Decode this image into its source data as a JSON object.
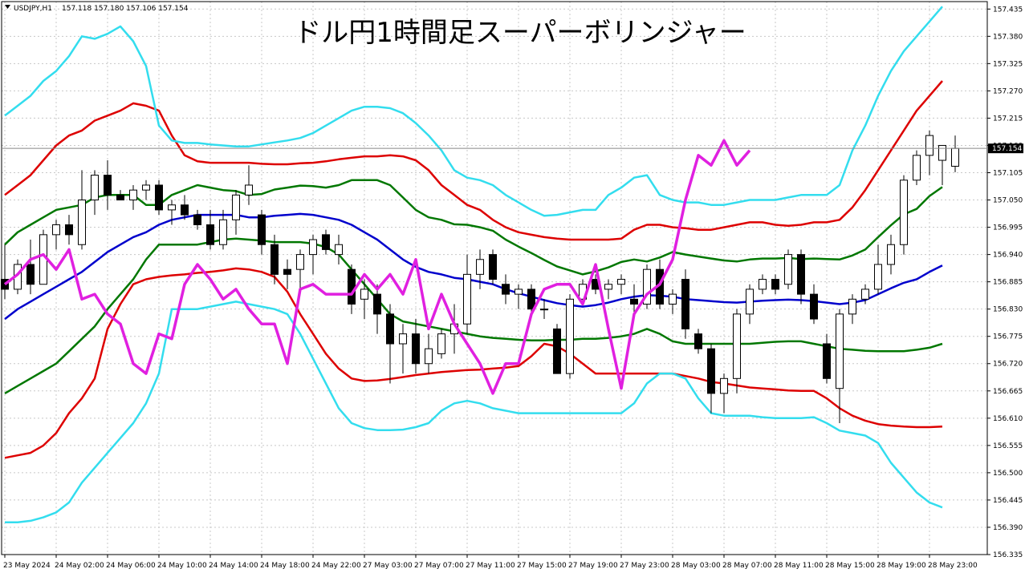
{
  "window": {
    "symbol": "USDJPY,H1",
    "ohlc": "157.118 157.180 157.106 157.154",
    "title": "ドル円1時間足スーパーボリンジャー",
    "current_price": "157.154"
  },
  "colors": {
    "background": "#ffffff",
    "grid": "#c8c8c8",
    "candle_bull": "#ffffff",
    "candle_bear": "#000000",
    "sma": "#0000cc",
    "band1": "#007700",
    "band2": "#dd0000",
    "band3": "#33ddee",
    "chikou": "#e020e0"
  },
  "chart_data": {
    "type": "line",
    "title": "ドル円1時間足スーパーボリンジャー",
    "xlabel": "",
    "ylabel": "",
    "ylim": [
      156.335,
      157.45
    ],
    "grid": true,
    "y_ticks": [
      "157.435",
      "157.380",
      "157.325",
      "157.270",
      "157.215",
      "157.160",
      "157.105",
      "157.050",
      "156.995",
      "156.940",
      "156.885",
      "156.830",
      "156.775",
      "156.720",
      "156.665",
      "156.610",
      "156.555",
      "156.500",
      "156.445",
      "156.390",
      "156.335"
    ],
    "x_ticks": [
      "23 May 2024",
      "24 May 02:00",
      "24 May 06:00",
      "24 May 10:00",
      "24 May 14:00",
      "24 May 18:00",
      "24 May 22:00",
      "27 May 03:00",
      "27 May 07:00",
      "27 May 11:00",
      "27 May 15:00",
      "27 May 19:00",
      "27 May 23:00",
      "28 May 03:00",
      "28 May 07:00",
      "28 May 11:00",
      "28 May 15:00",
      "28 May 19:00",
      "28 May 23:00"
    ],
    "candles": [
      {
        "o": 156.89,
        "h": 156.96,
        "l": 156.85,
        "c": 156.87
      },
      {
        "o": 156.87,
        "h": 156.93,
        "l": 156.86,
        "c": 156.92
      },
      {
        "o": 156.92,
        "h": 156.97,
        "l": 156.86,
        "c": 156.88
      },
      {
        "o": 156.88,
        "h": 156.99,
        "l": 156.88,
        "c": 156.98
      },
      {
        "o": 156.98,
        "h": 157.01,
        "l": 156.95,
        "c": 157.0
      },
      {
        "o": 157.0,
        "h": 157.02,
        "l": 156.96,
        "c": 156.98
      },
      {
        "o": 156.96,
        "h": 157.11,
        "l": 156.95,
        "c": 157.05
      },
      {
        "o": 157.05,
        "h": 157.11,
        "l": 157.02,
        "c": 157.1
      },
      {
        "o": 157.1,
        "h": 157.13,
        "l": 157.03,
        "c": 157.06
      },
      {
        "o": 157.06,
        "h": 157.07,
        "l": 157.05,
        "c": 157.05
      },
      {
        "o": 157.05,
        "h": 157.08,
        "l": 157.03,
        "c": 157.07
      },
      {
        "o": 157.07,
        "h": 157.09,
        "l": 157.05,
        "c": 157.08
      },
      {
        "o": 157.08,
        "h": 157.09,
        "l": 157.02,
        "c": 157.03
      },
      {
        "o": 157.03,
        "h": 157.05,
        "l": 157.0,
        "c": 157.04
      },
      {
        "o": 157.04,
        "h": 157.06,
        "l": 157.01,
        "c": 157.02
      },
      {
        "o": 157.02,
        "h": 157.03,
        "l": 156.99,
        "c": 157.0
      },
      {
        "o": 157.0,
        "h": 157.03,
        "l": 156.95,
        "c": 156.96
      },
      {
        "o": 156.96,
        "h": 157.03,
        "l": 156.95,
        "c": 157.01
      },
      {
        "o": 157.01,
        "h": 157.07,
        "l": 156.98,
        "c": 157.06
      },
      {
        "o": 157.06,
        "h": 157.12,
        "l": 157.04,
        "c": 157.08
      },
      {
        "o": 157.02,
        "h": 157.03,
        "l": 156.94,
        "c": 156.96
      },
      {
        "o": 156.96,
        "h": 156.98,
        "l": 156.88,
        "c": 156.9
      },
      {
        "o": 156.91,
        "h": 156.93,
        "l": 156.87,
        "c": 156.9
      },
      {
        "o": 156.91,
        "h": 156.95,
        "l": 156.86,
        "c": 156.94
      },
      {
        "o": 156.94,
        "h": 156.98,
        "l": 156.9,
        "c": 156.97
      },
      {
        "o": 156.98,
        "h": 156.99,
        "l": 156.94,
        "c": 156.95
      },
      {
        "o": 156.94,
        "h": 156.98,
        "l": 156.92,
        "c": 156.96
      },
      {
        "o": 156.91,
        "h": 156.92,
        "l": 156.82,
        "c": 156.84
      },
      {
        "o": 156.85,
        "h": 156.89,
        "l": 156.81,
        "c": 156.87
      },
      {
        "o": 156.86,
        "h": 156.88,
        "l": 156.78,
        "c": 156.82
      },
      {
        "o": 156.82,
        "h": 156.84,
        "l": 156.68,
        "c": 156.76
      },
      {
        "o": 156.76,
        "h": 156.8,
        "l": 156.7,
        "c": 156.78
      },
      {
        "o": 156.78,
        "h": 156.81,
        "l": 156.7,
        "c": 156.72
      },
      {
        "o": 156.72,
        "h": 156.78,
        "l": 156.7,
        "c": 156.75
      },
      {
        "o": 156.74,
        "h": 156.79,
        "l": 156.73,
        "c": 156.78
      },
      {
        "o": 156.78,
        "h": 156.84,
        "l": 156.74,
        "c": 156.8
      },
      {
        "o": 156.8,
        "h": 156.94,
        "l": 156.78,
        "c": 156.9
      },
      {
        "o": 156.9,
        "h": 156.95,
        "l": 156.87,
        "c": 156.93
      },
      {
        "o": 156.94,
        "h": 156.95,
        "l": 156.88,
        "c": 156.89
      },
      {
        "o": 156.88,
        "h": 156.9,
        "l": 156.84,
        "c": 156.86
      },
      {
        "o": 156.86,
        "h": 156.88,
        "l": 156.83,
        "c": 156.87
      },
      {
        "o": 156.87,
        "h": 156.88,
        "l": 156.82,
        "c": 156.83
      },
      {
        "o": 156.83,
        "h": 156.85,
        "l": 156.81,
        "c": 156.83
      },
      {
        "o": 156.79,
        "h": 156.8,
        "l": 156.7,
        "c": 156.7
      },
      {
        "o": 156.7,
        "h": 156.86,
        "l": 156.69,
        "c": 156.85
      },
      {
        "o": 156.85,
        "h": 156.89,
        "l": 156.84,
        "c": 156.88
      },
      {
        "o": 156.89,
        "h": 156.9,
        "l": 156.86,
        "c": 156.87
      },
      {
        "o": 156.87,
        "h": 156.89,
        "l": 156.85,
        "c": 156.88
      },
      {
        "o": 156.88,
        "h": 156.9,
        "l": 156.86,
        "c": 156.89
      },
      {
        "o": 156.85,
        "h": 156.88,
        "l": 156.82,
        "c": 156.84
      },
      {
        "o": 156.84,
        "h": 156.92,
        "l": 156.83,
        "c": 156.91
      },
      {
        "o": 156.91,
        "h": 156.93,
        "l": 156.83,
        "c": 156.84
      },
      {
        "o": 156.84,
        "h": 156.87,
        "l": 156.82,
        "c": 156.86
      },
      {
        "o": 156.89,
        "h": 156.91,
        "l": 156.77,
        "c": 156.79
      },
      {
        "o": 156.78,
        "h": 156.79,
        "l": 156.74,
        "c": 156.75
      },
      {
        "o": 156.75,
        "h": 156.76,
        "l": 156.62,
        "c": 156.66
      },
      {
        "o": 156.66,
        "h": 156.7,
        "l": 156.62,
        "c": 156.69
      },
      {
        "o": 156.69,
        "h": 156.83,
        "l": 156.66,
        "c": 156.82
      },
      {
        "o": 156.82,
        "h": 156.88,
        "l": 156.8,
        "c": 156.87
      },
      {
        "o": 156.87,
        "h": 156.9,
        "l": 156.86,
        "c": 156.89
      },
      {
        "o": 156.89,
        "h": 156.9,
        "l": 156.86,
        "c": 156.87
      },
      {
        "o": 156.88,
        "h": 156.95,
        "l": 156.87,
        "c": 156.94
      },
      {
        "o": 156.94,
        "h": 156.95,
        "l": 156.84,
        "c": 156.86
      },
      {
        "o": 156.86,
        "h": 156.88,
        "l": 156.8,
        "c": 156.81
      },
      {
        "o": 156.76,
        "h": 156.78,
        "l": 156.68,
        "c": 156.69
      },
      {
        "o": 156.67,
        "h": 156.83,
        "l": 156.6,
        "c": 156.82
      },
      {
        "o": 156.82,
        "h": 156.86,
        "l": 156.8,
        "c": 156.85
      },
      {
        "o": 156.85,
        "h": 156.88,
        "l": 156.84,
        "c": 156.87
      },
      {
        "o": 156.87,
        "h": 156.96,
        "l": 156.86,
        "c": 156.92
      },
      {
        "o": 156.92,
        "h": 156.98,
        "l": 156.9,
        "c": 156.96
      },
      {
        "o": 156.96,
        "h": 157.1,
        "l": 156.94,
        "c": 157.09
      },
      {
        "o": 157.09,
        "h": 157.15,
        "l": 157.08,
        "c": 157.14
      },
      {
        "o": 157.14,
        "h": 157.19,
        "l": 157.1,
        "c": 157.18
      },
      {
        "o": 157.13,
        "h": 157.15,
        "l": 157.08,
        "c": 157.16
      },
      {
        "o": 157.118,
        "h": 157.18,
        "l": 157.106,
        "c": 157.154
      }
    ],
    "series": [
      {
        "name": "",
        "role": "sma",
        "values": [
          156.81,
          156.83,
          156.845,
          156.86,
          156.875,
          156.89,
          156.905,
          156.925,
          156.945,
          156.96,
          156.975,
          156.985,
          157.0,
          157.01,
          157.015,
          157.02,
          157.02,
          157.02,
          157.02,
          157.015,
          157.015,
          157.018,
          157.02,
          157.022,
          157.02,
          157.015,
          157.01,
          157.0,
          156.985,
          156.97,
          156.95,
          156.93,
          156.915,
          156.905,
          156.9,
          156.893,
          156.89,
          156.885,
          156.88,
          156.87,
          156.862,
          156.855,
          156.848,
          156.842,
          156.838,
          156.835,
          156.838,
          156.843,
          156.85,
          156.855,
          156.858,
          156.857,
          156.855,
          156.85,
          156.848,
          156.846,
          156.844,
          156.843,
          156.845,
          156.847,
          156.848,
          156.849,
          156.848,
          156.846,
          156.843,
          156.84,
          156.843,
          156.848,
          156.86,
          156.872,
          156.883,
          156.89,
          156.905,
          156.918
        ]
      },
      {
        "name": "",
        "role": "band1",
        "values": [
          156.66,
          156.675,
          156.69,
          156.705,
          156.72,
          156.745,
          156.77,
          156.795,
          156.83,
          156.86,
          156.89,
          156.93,
          156.96,
          156.96,
          156.96,
          156.96,
          156.965,
          156.97,
          156.972,
          156.97,
          156.968,
          156.965,
          156.965,
          156.965,
          156.962,
          156.955,
          156.94,
          156.91,
          156.88,
          156.85,
          156.82,
          156.805,
          156.8,
          156.795,
          156.79,
          156.785,
          156.78,
          156.775,
          156.772,
          156.77,
          156.768,
          156.767,
          156.767,
          156.768,
          156.768,
          156.77,
          156.77,
          156.772,
          156.775,
          156.78,
          156.79,
          156.78,
          156.765,
          156.76,
          156.76,
          156.76,
          156.76,
          156.76,
          156.76,
          156.762,
          156.764,
          156.765,
          156.765,
          156.76,
          156.755,
          156.75,
          156.748,
          156.746,
          156.745,
          156.745,
          156.745,
          156.748,
          156.752,
          156.76
        ]
      },
      {
        "name": "",
        "role": "band2",
        "values": [
          156.53,
          156.535,
          156.54,
          156.555,
          156.58,
          156.62,
          156.65,
          156.69,
          156.79,
          156.84,
          156.88,
          156.89,
          156.895,
          156.898,
          156.9,
          156.903,
          156.905,
          156.908,
          156.912,
          156.91,
          156.905,
          156.895,
          156.865,
          156.82,
          156.78,
          156.74,
          156.71,
          156.69,
          156.685,
          156.686,
          156.689,
          156.693,
          156.697,
          156.7,
          156.703,
          156.705,
          156.707,
          156.708,
          156.71,
          156.712,
          156.715,
          156.735,
          156.76,
          156.755,
          156.74,
          156.72,
          156.7,
          156.7,
          156.7,
          156.7,
          156.7,
          156.7,
          156.7,
          156.695,
          156.69,
          156.683,
          156.68,
          156.676,
          156.672,
          156.67,
          156.668,
          156.666,
          156.665,
          156.665,
          156.65,
          156.63,
          156.615,
          156.605,
          156.598,
          156.595,
          156.593,
          156.592,
          156.592,
          156.593
        ]
      },
      {
        "name": "",
        "role": "band2u",
        "values": [
          157.06,
          157.08,
          157.1,
          157.13,
          157.16,
          157.18,
          157.19,
          157.21,
          157.22,
          157.23,
          157.245,
          157.24,
          157.23,
          157.18,
          157.14,
          157.128,
          157.125,
          157.125,
          157.125,
          157.125,
          157.123,
          157.122,
          157.122,
          157.124,
          157.125,
          157.128,
          157.132,
          157.135,
          157.138,
          157.138,
          157.14,
          157.138,
          157.13,
          157.11,
          157.08,
          157.06,
          157.04,
          157.03,
          157.01,
          156.995,
          156.985,
          156.98,
          156.975,
          156.972,
          156.97,
          156.97,
          156.97,
          156.97,
          156.972,
          156.99,
          157.0,
          157.0,
          156.995,
          156.993,
          156.99,
          156.99,
          156.995,
          157.0,
          157.005,
          157.005,
          157.0,
          156.998,
          157.0,
          157.005,
          157.005,
          157.01,
          157.035,
          157.07,
          157.11,
          157.15,
          157.19,
          157.23,
          157.26,
          157.29
        ]
      },
      {
        "name": "",
        "role": "band3",
        "values": [
          156.4,
          156.4,
          156.403,
          156.41,
          156.42,
          156.44,
          156.48,
          156.51,
          156.54,
          156.57,
          156.6,
          156.64,
          156.7,
          156.83,
          156.83,
          156.83,
          156.835,
          156.84,
          156.845,
          156.84,
          156.835,
          156.83,
          156.82,
          156.78,
          156.73,
          156.68,
          156.63,
          156.6,
          156.59,
          156.586,
          156.586,
          156.587,
          156.592,
          156.6,
          156.625,
          156.64,
          156.645,
          156.64,
          156.63,
          156.625,
          156.62,
          156.62,
          156.62,
          156.62,
          156.62,
          156.62,
          156.62,
          156.62,
          156.62,
          156.64,
          156.68,
          156.7,
          156.7,
          156.69,
          156.65,
          156.62,
          156.615,
          156.615,
          156.615,
          156.612,
          156.61,
          156.61,
          156.61,
          156.612,
          156.6,
          156.585,
          156.58,
          156.575,
          156.56,
          156.52,
          156.49,
          156.46,
          156.44,
          156.43
        ]
      },
      {
        "name": "",
        "role": "band3u",
        "values": [
          157.22,
          157.24,
          157.26,
          157.29,
          157.31,
          157.34,
          157.38,
          157.375,
          157.385,
          157.4,
          157.37,
          157.32,
          157.2,
          157.17,
          157.165,
          157.165,
          157.162,
          157.16,
          157.158,
          157.158,
          157.162,
          157.166,
          157.17,
          157.175,
          157.185,
          157.2,
          157.215,
          157.23,
          157.238,
          157.238,
          157.235,
          157.225,
          157.205,
          157.18,
          157.15,
          157.11,
          157.095,
          157.09,
          157.08,
          157.06,
          157.045,
          157.03,
          157.018,
          157.02,
          157.025,
          157.03,
          157.03,
          157.06,
          157.075,
          157.095,
          157.1,
          157.06,
          157.05,
          157.045,
          157.045,
          157.04,
          157.04,
          157.045,
          157.05,
          157.05,
          157.05,
          157.055,
          157.06,
          157.06,
          157.06,
          157.08,
          157.15,
          157.2,
          157.26,
          157.31,
          157.35,
          157.38,
          157.41,
          157.44
        ]
      },
      {
        "name": "",
        "role": "chikou",
        "values": [
          156.88,
          156.9,
          156.93,
          156.94,
          156.91,
          156.95,
          156.85,
          156.86,
          156.82,
          156.8,
          156.72,
          156.7,
          156.78,
          156.77,
          156.88,
          156.92,
          156.89,
          156.85,
          156.87,
          156.83,
          156.8,
          156.8,
          156.72,
          156.87,
          156.88,
          156.86,
          156.86,
          156.86,
          156.9,
          156.87,
          156.9,
          156.86,
          156.93,
          156.79,
          156.86,
          156.8,
          156.76,
          156.72,
          156.66,
          156.72,
          156.72,
          156.82,
          156.87,
          156.88,
          156.88,
          156.84,
          156.92,
          156.79,
          156.67,
          156.82,
          156.86,
          156.88,
          156.93,
          157.05,
          157.14,
          157.12,
          157.17,
          157.12,
          157.15
        ]
      }
    ]
  }
}
